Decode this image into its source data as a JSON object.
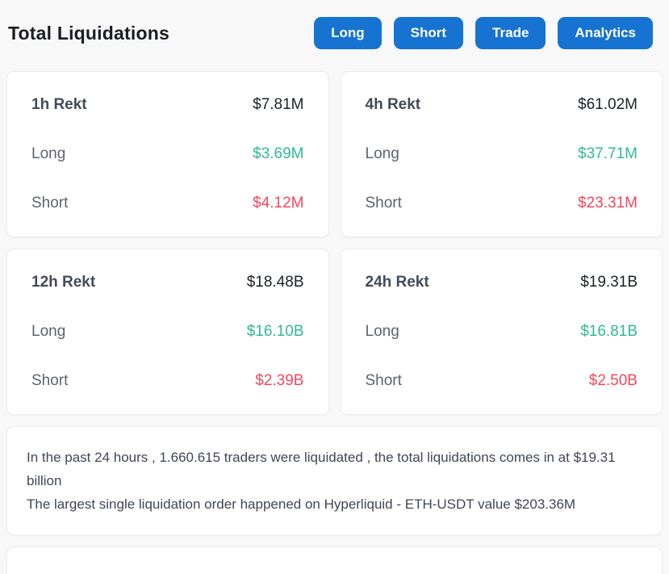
{
  "header": {
    "title": "Total Liquidations",
    "buttons": [
      {
        "label": "Long"
      },
      {
        "label": "Short"
      },
      {
        "label": "Trade"
      },
      {
        "label": "Analytics"
      }
    ]
  },
  "colors": {
    "accent_blue": "#1673d2",
    "long_green": "#30b898",
    "short_red": "#f5465d",
    "page_background": "#f8f8f9",
    "card_background": "#ffffff"
  },
  "cards": [
    {
      "period": "1h Rekt",
      "total": "$7.81M",
      "long_label": "Long",
      "long_value": "$3.69M",
      "short_label": "Short",
      "short_value": "$4.12M"
    },
    {
      "period": "4h Rekt",
      "total": "$61.02M",
      "long_label": "Long",
      "long_value": "$37.71M",
      "short_label": "Short",
      "short_value": "$23.31M"
    },
    {
      "period": "12h Rekt",
      "total": "$18.48B",
      "long_label": "Long",
      "long_value": "$16.10B",
      "short_label": "Short",
      "short_value": "$2.39B"
    },
    {
      "period": "24h Rekt",
      "total": "$19.31B",
      "long_label": "Long",
      "long_value": "$16.81B",
      "short_label": "Short",
      "short_value": "$2.50B"
    }
  ],
  "summary": {
    "line1": "In the past 24 hours , 1.660.615 traders were liquidated , the total liquidations comes in at $19.31 billion",
    "line2": "The largest single liquidation order happened on Hyperliquid - ETH-USDT value $203.36M"
  }
}
